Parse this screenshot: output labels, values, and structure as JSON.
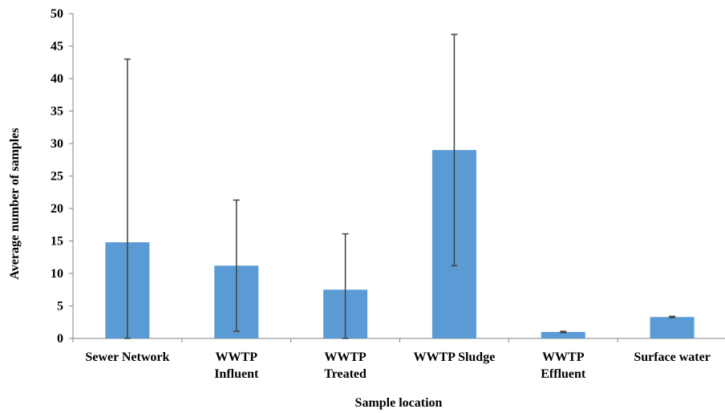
{
  "chart_data": {
    "type": "bar",
    "title": "",
    "xlabel": "Sample location",
    "ylabel": "Average number of samples",
    "ylim": [
      0,
      50
    ],
    "yticks": [
      0,
      5,
      10,
      15,
      20,
      25,
      30,
      35,
      40,
      45,
      50
    ],
    "grid": false,
    "legend": "none",
    "bar_color": "#5b9bd5",
    "error_bar_color": "#404040",
    "categories": [
      [
        "Sewer Network"
      ],
      [
        "WWTP",
        "Influent"
      ],
      [
        "WWTP",
        "Treated"
      ],
      [
        "WWTP Sludge"
      ],
      [
        "WWTP",
        "Effluent"
      ],
      [
        "Surface water"
      ]
    ],
    "values": [
      14.8,
      11.2,
      7.5,
      29.0,
      1.0,
      3.3
    ],
    "error_low": [
      0,
      1.1,
      0,
      11.2,
      0.9,
      3.2
    ],
    "error_high": [
      43.0,
      21.3,
      16.1,
      46.8,
      1.1,
      3.4
    ]
  }
}
